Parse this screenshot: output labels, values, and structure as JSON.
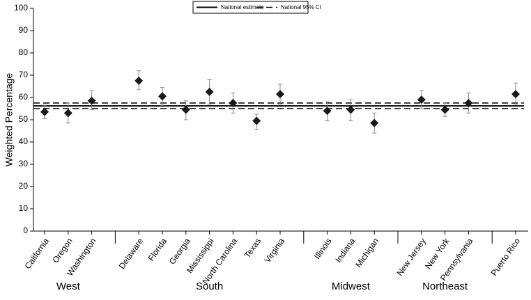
{
  "chart_data": {
    "type": "errorbar",
    "y_label": "Weighted Percentage",
    "ylim": [
      0,
      100
    ],
    "yticks": [
      0,
      10,
      20,
      30,
      40,
      50,
      60,
      70,
      80,
      90,
      100
    ],
    "legend": "top",
    "marker_color": "#1a1a1a",
    "error_color": "#888888",
    "national": {
      "name": "National estimate",
      "value": 56.2
    },
    "ci": {
      "name": "National 95% CI",
      "values": [
        55,
        57.5
      ]
    },
    "groups": [
      {
        "name": "West",
        "categories": [
          "California",
          "Oregon",
          "Washington"
        ],
        "values": [
          53.5,
          53,
          58.5
        ],
        "lower": [
          50.5,
          48.5,
          54.5
        ],
        "upper": [
          56.5,
          57.5,
          63
        ]
      },
      {
        "name": "South",
        "categories": [
          "Delaware",
          "Florida",
          "Georgia",
          "Mississippi",
          "North Carolina",
          "Texas",
          "Virginia"
        ],
        "values": [
          67.5,
          60.5,
          54.5,
          62.5,
          57.5,
          49.5,
          61.5
        ],
        "lower": [
          63.5,
          56.5,
          50,
          57,
          53,
          45.5,
          57
        ],
        "upper": [
          72,
          64.5,
          58.5,
          68,
          62,
          52.5,
          66
        ]
      },
      {
        "name": "Midwest",
        "categories": [
          "Illinois",
          "Indiana",
          "Michigan"
        ],
        "values": [
          54,
          54.5,
          48.5
        ],
        "lower": [
          49.5,
          49.5,
          44
        ],
        "upper": [
          58,
          59,
          53
        ]
      },
      {
        "name": "Northeast",
        "categories": [
          "New Jersey",
          "New York",
          "Pennsylvania"
        ],
        "values": [
          59,
          54.5,
          57.5
        ],
        "lower": [
          55,
          51.5,
          53
        ],
        "upper": [
          63,
          57.5,
          62
        ]
      },
      {
        "name": null,
        "categories": [
          "Puerto Rico"
        ],
        "values": [
          61.5
        ],
        "lower": [
          57
        ],
        "upper": [
          66.5
        ]
      }
    ]
  }
}
